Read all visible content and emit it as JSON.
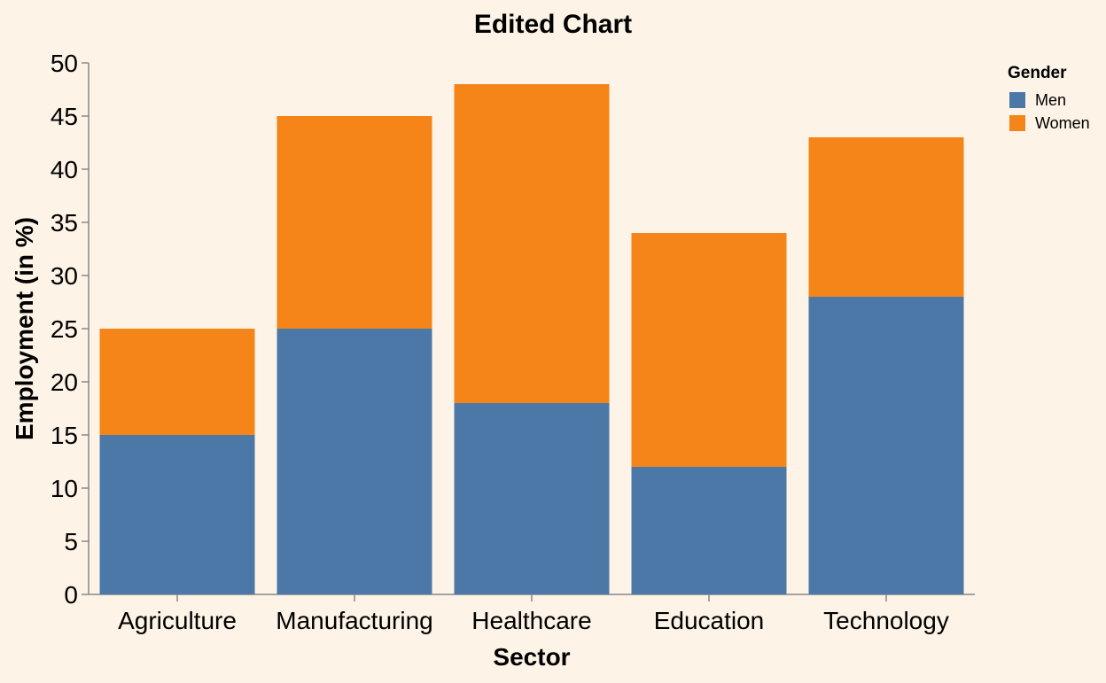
{
  "chart_data": {
    "type": "bar",
    "stacked": true,
    "title": "Edited Chart",
    "xlabel": "Sector",
    "ylabel": "Employment (in %)",
    "ylim": [
      0,
      50
    ],
    "yticks": [
      0,
      5,
      10,
      15,
      20,
      25,
      30,
      35,
      40,
      45,
      50
    ],
    "categories": [
      "Agriculture",
      "Manufacturing",
      "Healthcare",
      "Education",
      "Technology"
    ],
    "series": [
      {
        "name": "Men",
        "color": "#4c78a8",
        "values": [
          15,
          25,
          18,
          12,
          28
        ]
      },
      {
        "name": "Women",
        "color": "#f58518",
        "values": [
          10,
          20,
          30,
          22,
          15
        ]
      }
    ],
    "legend": {
      "title": "Gender",
      "position": "top-right"
    },
    "grid": false
  }
}
